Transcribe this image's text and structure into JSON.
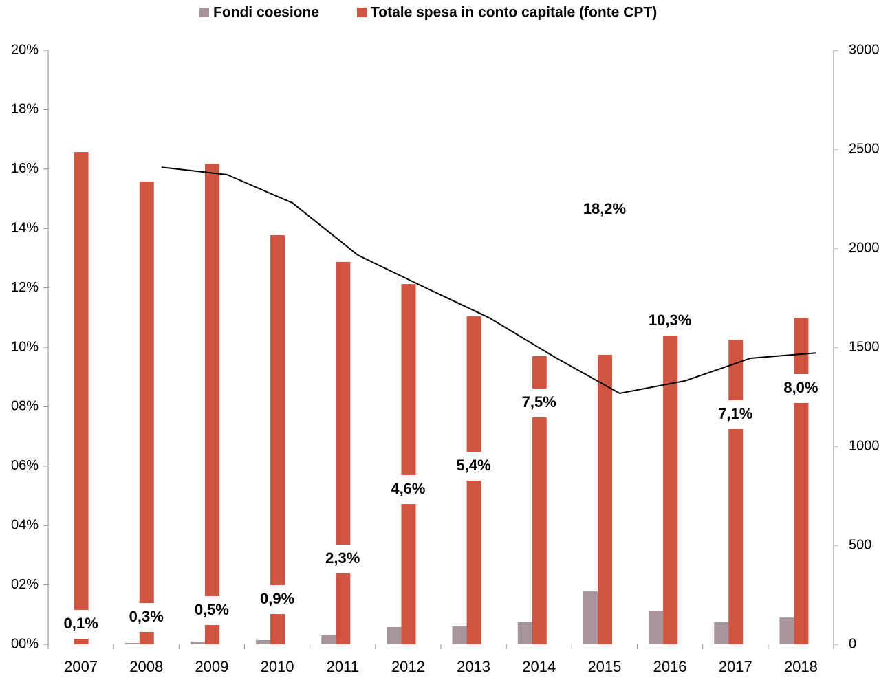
{
  "chart_data": {
    "type": "bar",
    "categories": [
      "2007",
      "2008",
      "2009",
      "2010",
      "2011",
      "2012",
      "2013",
      "2014",
      "2015",
      "2016",
      "2017",
      "2018"
    ],
    "series": [
      {
        "name": "Fondi coesione",
        "color": "#a6969b",
        "axis": "y2",
        "values": [
          0,
          7,
          14,
          21,
          45,
          87,
          90,
          111,
          267,
          170,
          111,
          135
        ]
      },
      {
        "name": "Totale spesa in conto capitale (fonte CPT)",
        "color": "#d05540",
        "axis": "y2",
        "values": [
          2486,
          2337,
          2427,
          2066,
          1931,
          1819,
          1656,
          1455,
          1462,
          1566,
          1538,
          1649
        ]
      },
      {
        "type": "line",
        "color": "#000000",
        "axis": "y",
        "values": [
          null,
          16.06,
          15.81,
          14.86,
          13.1,
          12.04,
          11.0,
          9.68,
          8.45,
          8.87,
          9.63,
          9.81
        ]
      }
    ],
    "data_labels": [
      "0,1%",
      "0,3%",
      "0,5%",
      "0,9%",
      "2,3%",
      "4,6%",
      "5,4%",
      "7,5%",
      "18,2%",
      "10,3%",
      "7,1%",
      "8,0%"
    ],
    "ylim": [
      0,
      20
    ],
    "yticks": [
      {
        "value": 0,
        "label": "00%"
      },
      {
        "value": 2,
        "label": "02%"
      },
      {
        "value": 4,
        "label": "04%"
      },
      {
        "value": 6,
        "label": "06%"
      },
      {
        "value": 8,
        "label": "08%"
      },
      {
        "value": 10,
        "label": "10%"
      },
      {
        "value": 12,
        "label": "12%"
      },
      {
        "value": 14,
        "label": "14%"
      },
      {
        "value": 16,
        "label": "16%"
      },
      {
        "value": 18,
        "label": "18%"
      },
      {
        "value": 20,
        "label": "20%"
      }
    ],
    "y2lim": [
      0,
      3000
    ],
    "y2ticks": [
      0,
      500,
      1000,
      1500,
      2000,
      2500,
      3000
    ]
  }
}
